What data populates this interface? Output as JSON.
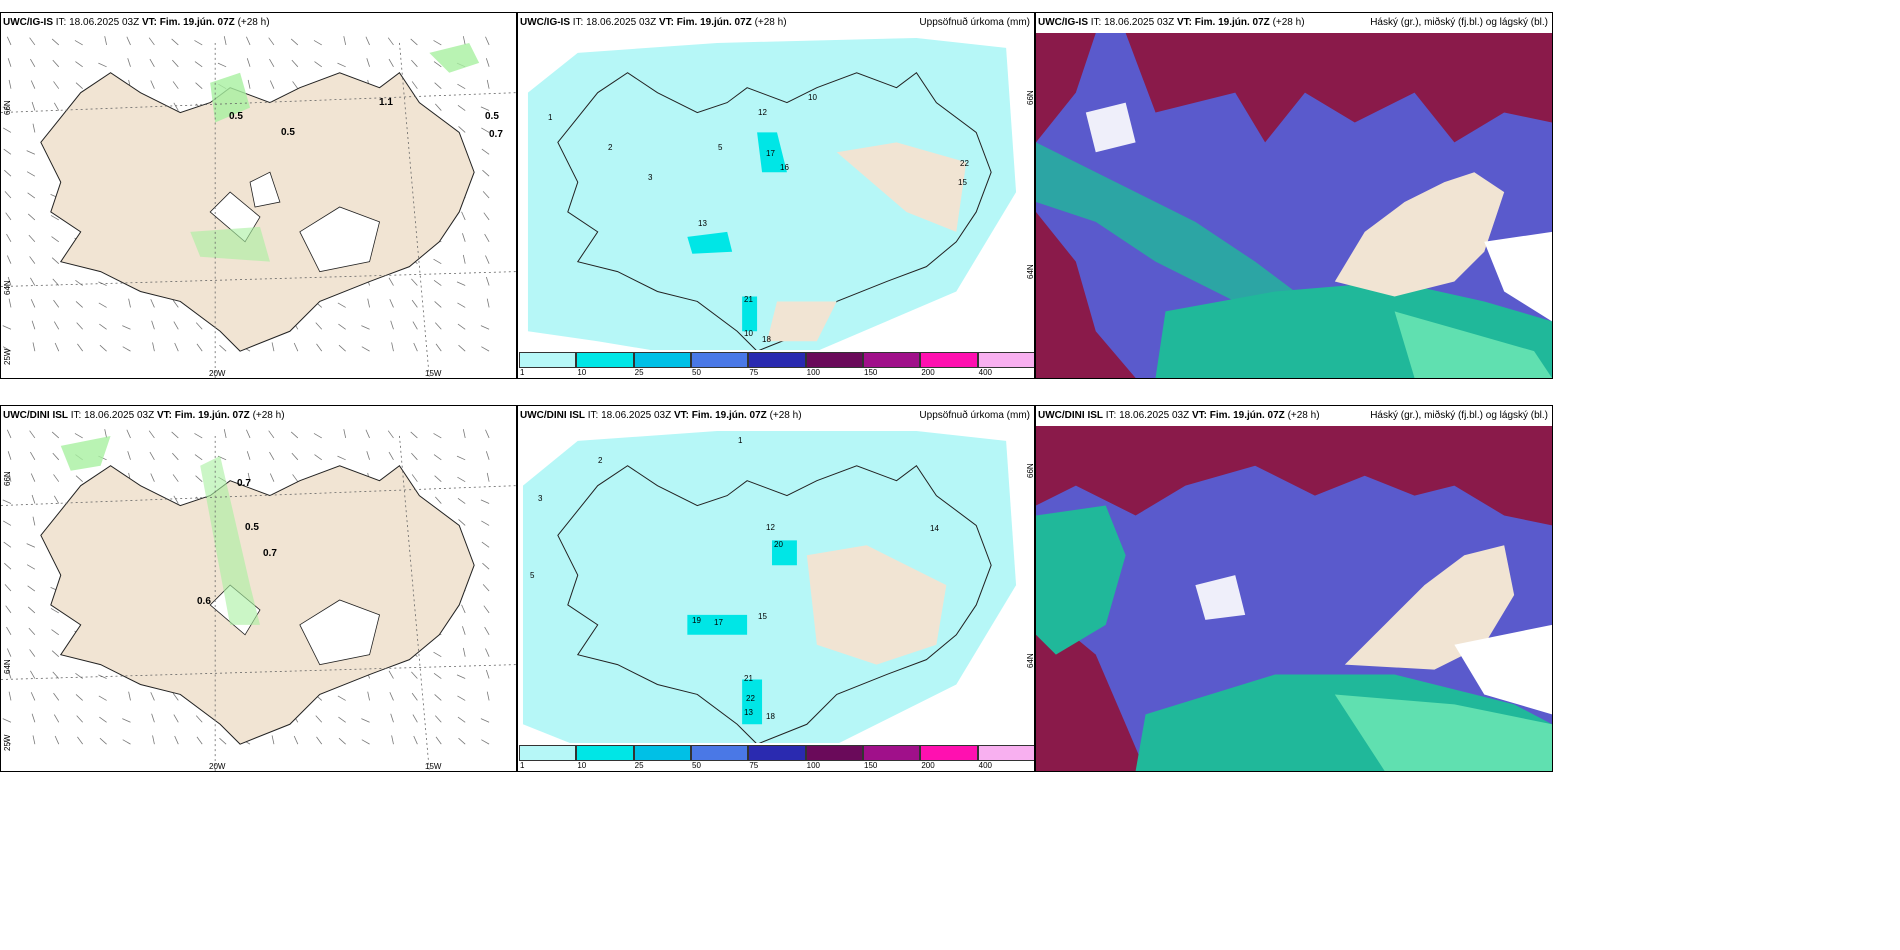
{
  "panels": {
    "p1": {
      "model": "UWC/IG-IS",
      "it_label": "IT:",
      "it": "18.06.2025 03Z",
      "vt_label": "VT:",
      "vt": "Fim. 19.jún. 07Z",
      "lead": "(+28 h)",
      "title": "",
      "labels": {
        "lat_66": "66N",
        "lat_64": "64N",
        "lon_25": "25W",
        "lon_20": "20W",
        "lon_15": "15W"
      },
      "values": [
        "0.5",
        "0.5",
        "1.1",
        "0.5",
        "0.7"
      ]
    },
    "p2": {
      "model": "UWC/IG-IS",
      "it_label": "IT:",
      "it": "18.06.2025 03Z",
      "vt_label": "VT:",
      "vt": "Fim. 19.jún. 07Z",
      "lead": "(+28 h)",
      "title": "Uppsöfnuð úrkoma (mm)",
      "labels": {
        "lat_66": "66N",
        "lat_64": "64N"
      },
      "values": [
        "1",
        "2",
        "3",
        "5",
        "12",
        "17",
        "16",
        "10",
        "15",
        "13",
        "21",
        "18",
        "10",
        "22"
      ]
    },
    "p3": {
      "model": "UWC/IG-IS",
      "it_label": "IT:",
      "it": "18.06.2025 03Z",
      "vt_label": "VT:",
      "vt": "Fim. 19.jún. 07Z",
      "lead": "(+28 h)",
      "title": "Háský (gr.), miðský (fj.bl.) og lágský (bl.)"
    },
    "p4": {
      "model": "UWC/DINI ISL",
      "it_label": "IT:",
      "it": "18.06.2025 03Z",
      "vt_label": "VT:",
      "vt": "Fim. 19.jún. 07Z",
      "lead": "(+28 h)",
      "title": "",
      "labels": {
        "lat_66": "66N",
        "lat_64": "64N",
        "lon_25": "25W",
        "lon_20": "20W",
        "lon_15": "15W"
      },
      "values": [
        "0.7",
        "0.5",
        "0.7",
        "0.6"
      ]
    },
    "p5": {
      "model": "UWC/DINI ISL",
      "it_label": "IT:",
      "it": "18.06.2025 03Z",
      "vt_label": "VT:",
      "vt": "Fim. 19.jún. 07Z",
      "lead": "(+28 h)",
      "title": "Uppsöfnuð úrkoma (mm)",
      "labels": {
        "lat_66": "66N",
        "lat_64": "64N"
      },
      "values": [
        "1",
        "2",
        "3",
        "5",
        "12",
        "20",
        "19",
        "17",
        "15",
        "14",
        "21",
        "22",
        "13",
        "18"
      ]
    },
    "p6": {
      "model": "UWC/DINI ISL",
      "it_label": "IT:",
      "it": "18.06.2025 03Z",
      "vt_label": "VT:",
      "vt": "Fim. 19.jún. 07Z",
      "lead": "(+28 h)",
      "title": "Háský (gr.), miðský (fj.bl.) og lágský (bl.)"
    }
  },
  "colorbar": {
    "ticks": [
      "1",
      "10",
      "25",
      "50",
      "75",
      "100",
      "150",
      "200",
      "400"
    ],
    "colors": [
      "#b6f7f7",
      "#00e6e6",
      "#00c0e6",
      "#4a78e6",
      "#2a2ab0",
      "#6a0a5a",
      "#a0108a",
      "#ff10b0",
      "#f8b0f0"
    ]
  },
  "colors": {
    "land": "#f1e4d3",
    "green": "#a8f0a0",
    "precip_light": "#b6f7f7",
    "precip_mid": "#00e6e6",
    "cloud_mid": "#5a5acc",
    "cloud_high": "#8a1a4a",
    "cloud_low": "#20b89a",
    "cloud_low_light": "#60e0b0",
    "snow": "#ffffff"
  }
}
